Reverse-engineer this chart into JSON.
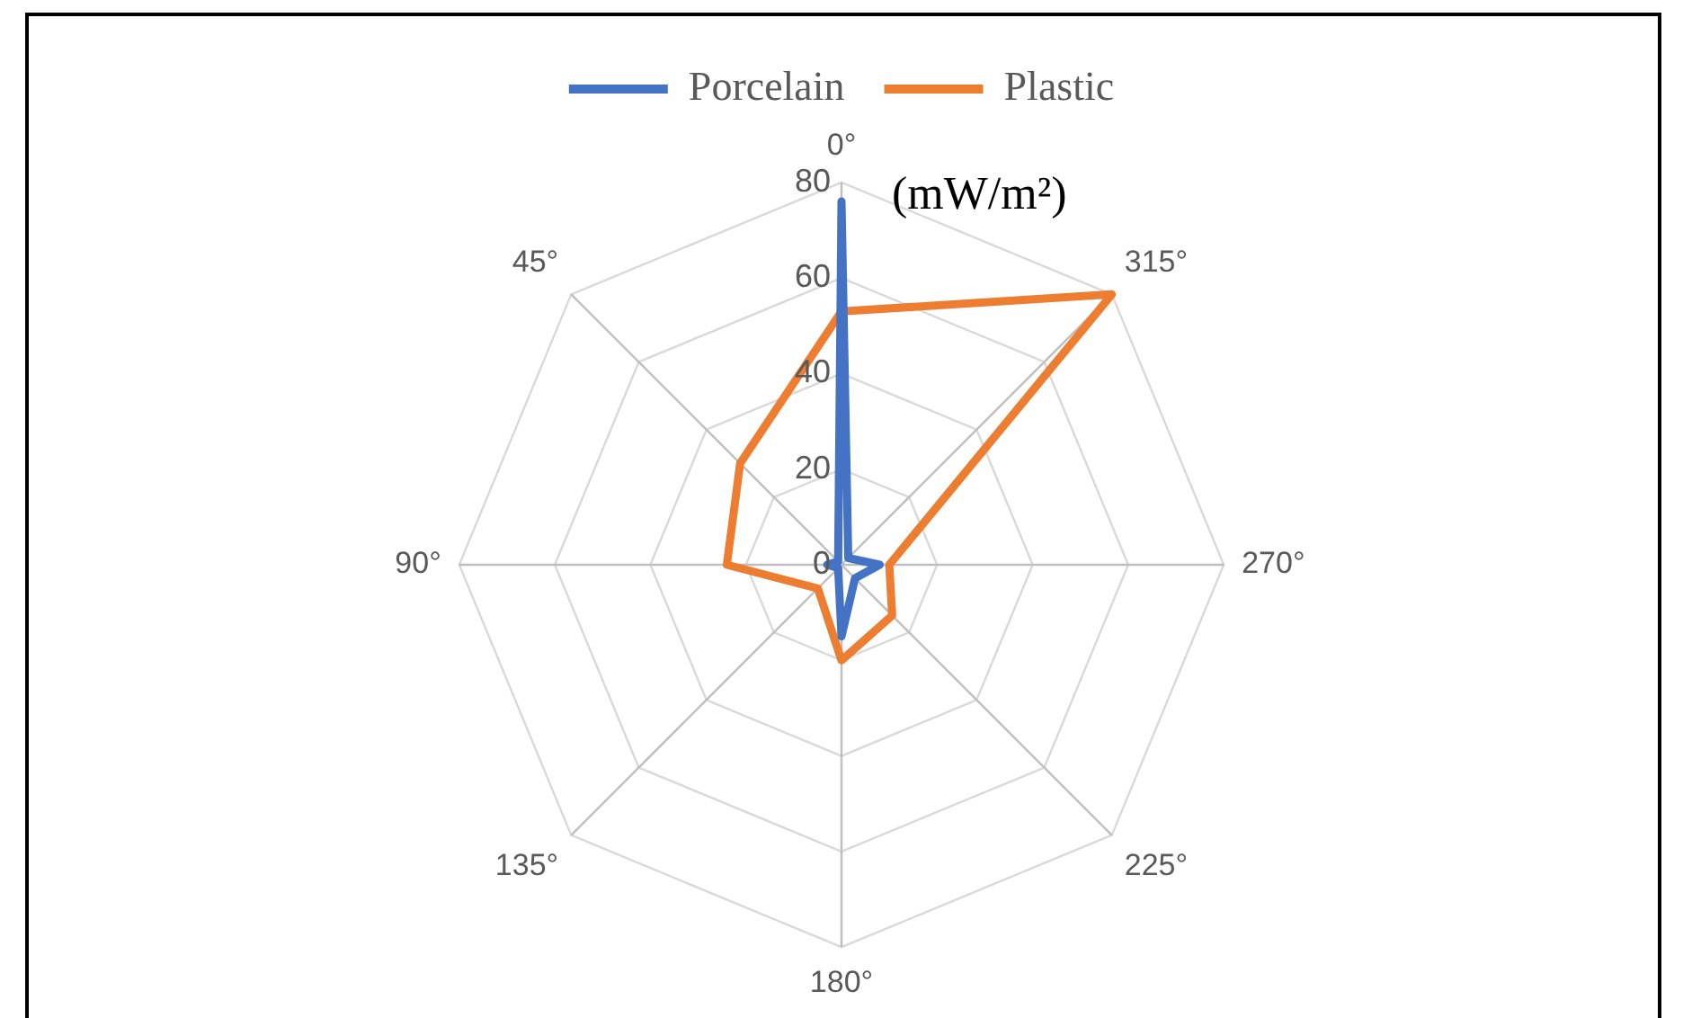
{
  "chart_data": {
    "type": "radar",
    "categories": [
      "0°",
      "315°",
      "270°",
      "225°",
      "180°",
      "135°",
      "90°",
      "45°"
    ],
    "series": [
      {
        "name": "Porcelain",
        "color": "#4472c4",
        "values": [
          76,
          2,
          8,
          4,
          15,
          1,
          3,
          1
        ]
      },
      {
        "name": "Plastic",
        "color": "#ed7d31",
        "values": [
          53,
          80,
          10,
          15,
          20,
          7,
          24,
          30
        ]
      }
    ],
    "ylim": [
      0,
      80
    ],
    "yticks": [
      0,
      20,
      40,
      60,
      80
    ],
    "grid": true,
    "legend": "top",
    "annotations": [
      "(mW/m²)"
    ]
  }
}
